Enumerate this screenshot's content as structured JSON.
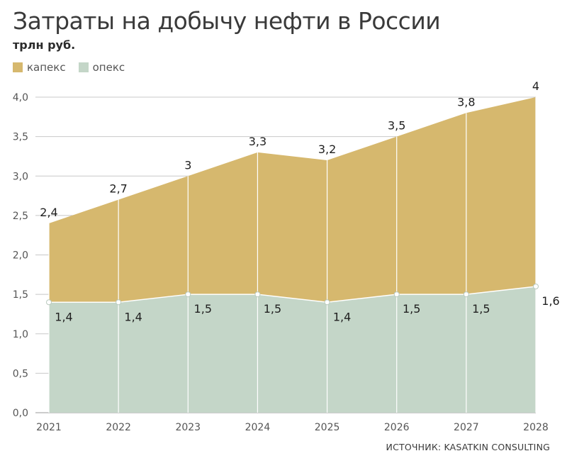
{
  "title": "Затраты на добычу нефти в России",
  "subtitle": "трлн руб.",
  "source": "ИСТОЧНИК: KASATKIN CONSULTING",
  "colors": {
    "capex": "#d6b86e",
    "opex": "#c4d6c8",
    "grid": "#c8c8c8",
    "axis": "#9a9a9a"
  },
  "chart_data": {
    "type": "area",
    "stacked": true,
    "categories": [
      "2021",
      "2022",
      "2023",
      "2024",
      "2025",
      "2026",
      "2027",
      "2028"
    ],
    "series": [
      {
        "name": "опекс",
        "values": [
          1.4,
          1.4,
          1.5,
          1.5,
          1.4,
          1.5,
          1.5,
          1.6
        ],
        "labels": [
          "1,4",
          "1,4",
          "1,5",
          "1,5",
          "1,4",
          "1,5",
          "1,5",
          "1,6"
        ]
      },
      {
        "name": "капекс",
        "values": [
          1.0,
          1.3,
          1.5,
          1.8,
          1.8,
          2.0,
          2.3,
          2.4
        ]
      }
    ],
    "totals": [
      2.4,
      2.7,
      3.0,
      3.3,
      3.2,
      3.5,
      3.8,
      4.0
    ],
    "total_labels": [
      "2,4",
      "2,7",
      "3",
      "3,3",
      "3,2",
      "3,5",
      "3,8",
      "4"
    ],
    "yticks": [
      "0,0",
      "0,5",
      "1,0",
      "1,5",
      "2,0",
      "2,5",
      "3,0",
      "3,5",
      "4,0"
    ],
    "ylim": [
      0,
      4
    ],
    "grid": true,
    "legend_position": "top-left"
  }
}
